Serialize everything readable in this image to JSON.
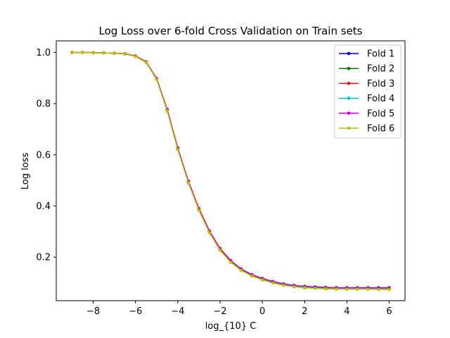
{
  "chart_data": {
    "type": "line",
    "title": "Log Loss over 6-fold Cross Validation on Train sets",
    "xlabel": "log_{10} C",
    "ylabel": "Log loss",
    "xlim": [
      -9.75,
      6.75
    ],
    "ylim": [
      0.03,
      1.045
    ],
    "xticks": [
      -8,
      -6,
      -4,
      -2,
      0,
      2,
      4,
      6
    ],
    "xtick_labels": [
      "−8",
      "−6",
      "−4",
      "−2",
      "0",
      "2",
      "4",
      "6"
    ],
    "yticks": [
      0.2,
      0.4,
      0.6,
      0.8,
      1.0
    ],
    "ytick_labels": [
      "0.2",
      "0.4",
      "0.6",
      "0.8",
      "1.0"
    ],
    "grid": false,
    "legend": "top-right",
    "x": [
      -9,
      -8.5,
      -8,
      -7.5,
      -7,
      -6.5,
      -6,
      -5.5,
      -5,
      -4.5,
      -4,
      -3.5,
      -3,
      -2.5,
      -2,
      -1.5,
      -1,
      -0.5,
      0,
      0.5,
      1,
      1.5,
      2,
      2.5,
      3,
      3.5,
      4,
      4.5,
      5,
      5.5,
      6
    ],
    "series": [
      {
        "name": "Fold 1",
        "color": "#0000ff",
        "values": [
          1.0,
          1.0,
          0.999,
          0.998,
          0.997,
          0.994,
          0.985,
          0.962,
          0.897,
          0.775,
          0.625,
          0.495,
          0.388,
          0.3,
          0.232,
          0.185,
          0.152,
          0.13,
          0.115,
          0.103,
          0.094,
          0.088,
          0.084,
          0.082,
          0.08,
          0.079,
          0.079,
          0.079,
          0.078,
          0.078,
          0.078
        ]
      },
      {
        "name": "Fold 2",
        "color": "#008000",
        "values": [
          1.0,
          1.0,
          0.999,
          0.998,
          0.997,
          0.994,
          0.985,
          0.962,
          0.896,
          0.774,
          0.624,
          0.494,
          0.387,
          0.299,
          0.231,
          0.184,
          0.151,
          0.129,
          0.114,
          0.102,
          0.093,
          0.087,
          0.083,
          0.081,
          0.079,
          0.078,
          0.078,
          0.078,
          0.077,
          0.077,
          0.077
        ]
      },
      {
        "name": "Fold 3",
        "color": "#ff0000",
        "values": [
          1.0,
          1.0,
          0.999,
          0.998,
          0.997,
          0.994,
          0.985,
          0.962,
          0.896,
          0.774,
          0.624,
          0.494,
          0.387,
          0.299,
          0.231,
          0.184,
          0.151,
          0.129,
          0.114,
          0.102,
          0.093,
          0.087,
          0.083,
          0.081,
          0.079,
          0.079,
          0.078,
          0.078,
          0.078,
          0.078,
          0.078
        ]
      },
      {
        "name": "Fold 4",
        "color": "#00bfbf",
        "values": [
          1.0,
          1.0,
          0.999,
          0.998,
          0.997,
          0.994,
          0.985,
          0.962,
          0.896,
          0.774,
          0.624,
          0.494,
          0.387,
          0.299,
          0.231,
          0.184,
          0.151,
          0.129,
          0.114,
          0.102,
          0.093,
          0.087,
          0.083,
          0.081,
          0.079,
          0.078,
          0.078,
          0.078,
          0.078,
          0.077,
          0.077
        ]
      },
      {
        "name": "Fold 5",
        "color": "#bf00bf",
        "values": [
          1.0,
          1.0,
          0.999,
          0.998,
          0.997,
          0.995,
          0.986,
          0.963,
          0.898,
          0.777,
          0.627,
          0.497,
          0.39,
          0.302,
          0.234,
          0.187,
          0.154,
          0.132,
          0.117,
          0.105,
          0.096,
          0.09,
          0.086,
          0.084,
          0.082,
          0.081,
          0.081,
          0.081,
          0.081,
          0.081,
          0.081
        ]
      },
      {
        "name": "Fold 6",
        "color": "#bfbf00",
        "values": [
          1.0,
          1.0,
          0.999,
          0.998,
          0.997,
          0.994,
          0.984,
          0.96,
          0.894,
          0.77,
          0.62,
          0.49,
          0.383,
          0.295,
          0.227,
          0.18,
          0.148,
          0.126,
          0.111,
          0.099,
          0.09,
          0.084,
          0.08,
          0.078,
          0.076,
          0.075,
          0.075,
          0.075,
          0.075,
          0.074,
          0.074
        ]
      }
    ]
  }
}
